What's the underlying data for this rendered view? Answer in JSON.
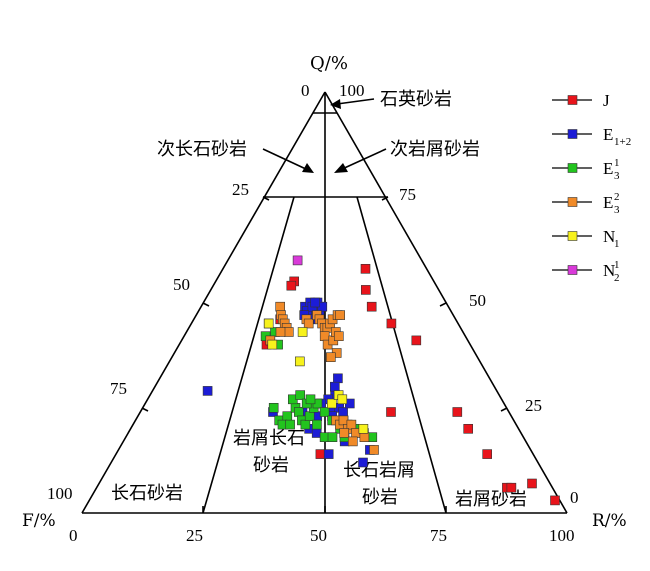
{
  "chart_data": {
    "type": "scatter",
    "subtype": "ternary-QFR",
    "axes": {
      "top": "Q/%",
      "left": "F/%",
      "right": "R/%"
    },
    "tick_labels": {
      "apex": [
        "0",
        "100"
      ],
      "left_side": [
        "25",
        "50",
        "75",
        "100"
      ],
      "right_side": [
        "75",
        "50",
        "25",
        "0"
      ],
      "bottom": [
        "0",
        "25",
        "50",
        "75",
        "100"
      ]
    },
    "regions": {
      "quartz": "石英砂岩",
      "sub_feldspar": "次长石砂岩",
      "sub_lithic": "次岩屑砂岩",
      "lithic_feldspar_1": "岩屑长石",
      "lithic_feldspar_2": "砂岩",
      "feldspar_lithic_1": "长石岩屑",
      "feldspar_lithic_2": "砂岩",
      "feldspar": "长石砂岩",
      "lithic": "岩屑砂岩"
    },
    "legend": [
      {
        "key": "J",
        "label": "J",
        "sub": "",
        "sup": "",
        "color": "#e8141b"
      },
      {
        "key": "E12",
        "label": "E",
        "sub": "1+2",
        "sup": "",
        "color": "#1c1cd6"
      },
      {
        "key": "E31",
        "label": "E",
        "sub": "3",
        "sup": "1",
        "color": "#22c41e"
      },
      {
        "key": "E32",
        "label": "E",
        "sub": "3",
        "sup": "2",
        "color": "#f08a28"
      },
      {
        "key": "N1",
        "label": "N",
        "sub": "1",
        "sup": "",
        "color": "#f7f21c"
      },
      {
        "key": "N21",
        "label": "N",
        "sub": "2",
        "sup": "1",
        "color": "#d93ad9"
      }
    ],
    "series": [
      {
        "name": "J",
        "color": "#e8141b",
        "points": [
          [
            70,
            58
          ],
          [
            68,
            53
          ],
          [
            69,
            49
          ],
          [
            75,
            45
          ],
          [
            82,
            41
          ],
          [
            86,
            24
          ],
          [
            87,
            20
          ],
          [
            89,
            14
          ],
          [
            90,
            6
          ],
          [
            91,
            6
          ],
          [
            96,
            7
          ],
          [
            99,
            3
          ],
          [
            36,
            55
          ],
          [
            35,
            54
          ],
          [
            33,
            46
          ],
          [
            29,
            45
          ],
          [
            30,
            40
          ],
          [
            55,
            22
          ],
          [
            49,
            14
          ],
          [
            68,
            24
          ]
        ]
      },
      {
        "name": "E12",
        "color": "#1c1cd6",
        "points": [
          [
            42,
            49
          ],
          [
            44,
            48
          ],
          [
            45,
            47
          ],
          [
            46,
            48
          ],
          [
            48,
            49
          ],
          [
            44,
            50
          ],
          [
            47,
            47
          ],
          [
            43,
            48
          ],
          [
            45,
            49
          ],
          [
            47,
            50
          ],
          [
            48,
            47
          ],
          [
            46,
            46
          ],
          [
            49,
            49
          ],
          [
            44,
            46
          ],
          [
            42,
            47
          ],
          [
            46,
            50
          ],
          [
            16,
            29
          ],
          [
            36,
            24
          ],
          [
            44,
            24
          ],
          [
            48,
            23
          ],
          [
            52,
            24
          ],
          [
            54,
            25
          ],
          [
            55,
            24
          ],
          [
            57,
            26
          ],
          [
            53,
            28
          ],
          [
            52,
            23
          ],
          [
            51,
            27
          ],
          [
            49,
            26
          ],
          [
            46,
            20
          ],
          [
            48,
            19
          ],
          [
            51,
            14
          ],
          [
            59,
            12
          ],
          [
            61,
            15
          ],
          [
            57,
            20
          ],
          [
            55,
            17
          ],
          [
            54,
            32
          ],
          [
            53,
            30
          ]
        ]
      },
      {
        "name": "E31",
        "color": "#22c41e",
        "points": [
          [
            29,
            42
          ],
          [
            31,
            41
          ],
          [
            32,
            43
          ],
          [
            34,
            40
          ],
          [
            36,
            25
          ],
          [
            38,
            22
          ],
          [
            40,
            23
          ],
          [
            42,
            25
          ],
          [
            43,
            24
          ],
          [
            44,
            22
          ],
          [
            45,
            21
          ],
          [
            46,
            23
          ],
          [
            47,
            25
          ],
          [
            48,
            26
          ],
          [
            50,
            24
          ],
          [
            52,
            22
          ],
          [
            54,
            20
          ],
          [
            56,
            21
          ],
          [
            58,
            20
          ],
          [
            60,
            19
          ],
          [
            62,
            18
          ],
          [
            41,
            27
          ],
          [
            43,
            28
          ],
          [
            45,
            26
          ],
          [
            46,
            27
          ],
          [
            39,
            21
          ],
          [
            41,
            21
          ],
          [
            48,
            21
          ],
          [
            50,
            18
          ],
          [
            55,
            18
          ],
          [
            52,
            18
          ]
        ]
      },
      {
        "name": "E32",
        "color": "#f08a28",
        "points": [
          [
            32,
            49
          ],
          [
            33,
            47
          ],
          [
            34,
            46
          ],
          [
            35,
            45
          ],
          [
            36,
            44
          ],
          [
            37,
            43
          ],
          [
            34,
            43
          ],
          [
            31,
            41
          ],
          [
            43,
            46
          ],
          [
            44,
            45
          ],
          [
            47,
            47
          ],
          [
            48,
            46
          ],
          [
            49,
            45
          ],
          [
            50,
            44
          ],
          [
            51,
            44
          ],
          [
            52,
            45
          ],
          [
            53,
            46
          ],
          [
            55,
            47
          ],
          [
            56,
            47
          ],
          [
            50,
            42
          ],
          [
            51,
            40
          ],
          [
            53,
            41
          ],
          [
            54,
            43
          ],
          [
            55,
            42
          ],
          [
            54,
            38
          ],
          [
            52,
            37
          ],
          [
            53,
            22
          ],
          [
            54,
            21
          ],
          [
            55,
            22
          ],
          [
            56,
            20
          ],
          [
            57,
            21
          ],
          [
            55,
            19
          ],
          [
            58,
            19
          ],
          [
            60,
            18
          ],
          [
            62,
            15
          ],
          [
            57,
            17
          ]
        ]
      },
      {
        "name": "N1",
        "color": "#f7f21c",
        "points": [
          [
            29,
            45
          ],
          [
            32,
            40
          ],
          [
            42,
            43
          ],
          [
            42,
            36
          ],
          [
            52,
            26
          ],
          [
            54,
            28
          ],
          [
            55,
            27
          ],
          [
            60,
            20
          ]
        ]
      },
      {
        "name": "N21",
        "color": "#d93ad9",
        "points": [
          [
            36,
            60
          ]
        ]
      }
    ]
  }
}
